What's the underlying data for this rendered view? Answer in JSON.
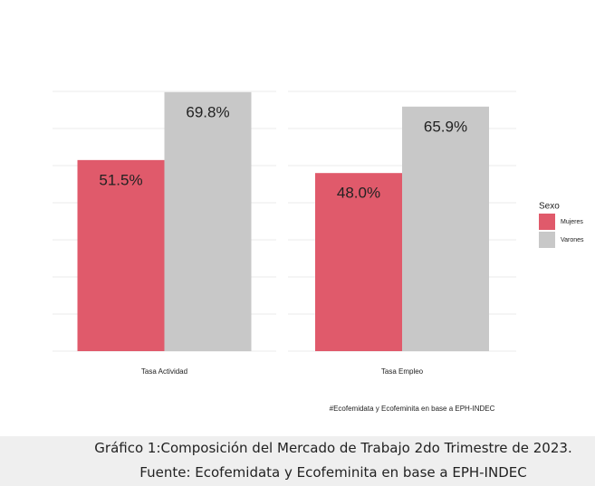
{
  "chart_data": {
    "type": "bar",
    "categories": [
      "Tasa Actividad",
      "Tasa Empleo"
    ],
    "series": [
      {
        "name": "Mujeres",
        "color": "#e05a6b",
        "values": [
          51.5,
          48.0
        ],
        "value_labels": [
          "51.5%",
          "48.0%"
        ]
      },
      {
        "name": "Varones",
        "color": "#c8c8c8",
        "values": [
          69.8,
          65.9
        ],
        "value_labels": [
          "69.8%",
          "65.9%"
        ]
      }
    ],
    "ylim": [
      0,
      70
    ],
    "yticks": [
      0,
      10,
      20,
      30,
      40,
      50,
      60,
      70
    ],
    "grid": true,
    "legend_title": "Sexo",
    "legend": "right",
    "caption": "#Ecofemidata y Ecofeminita en base a EPH-INDEC"
  },
  "figure_caption": "Gráfico 1:Composición del Mercado de Trabajo 2do Trimestre de 2023. Fuente: Ecofemidata y Ecofeminita en base a EPH-INDEC"
}
